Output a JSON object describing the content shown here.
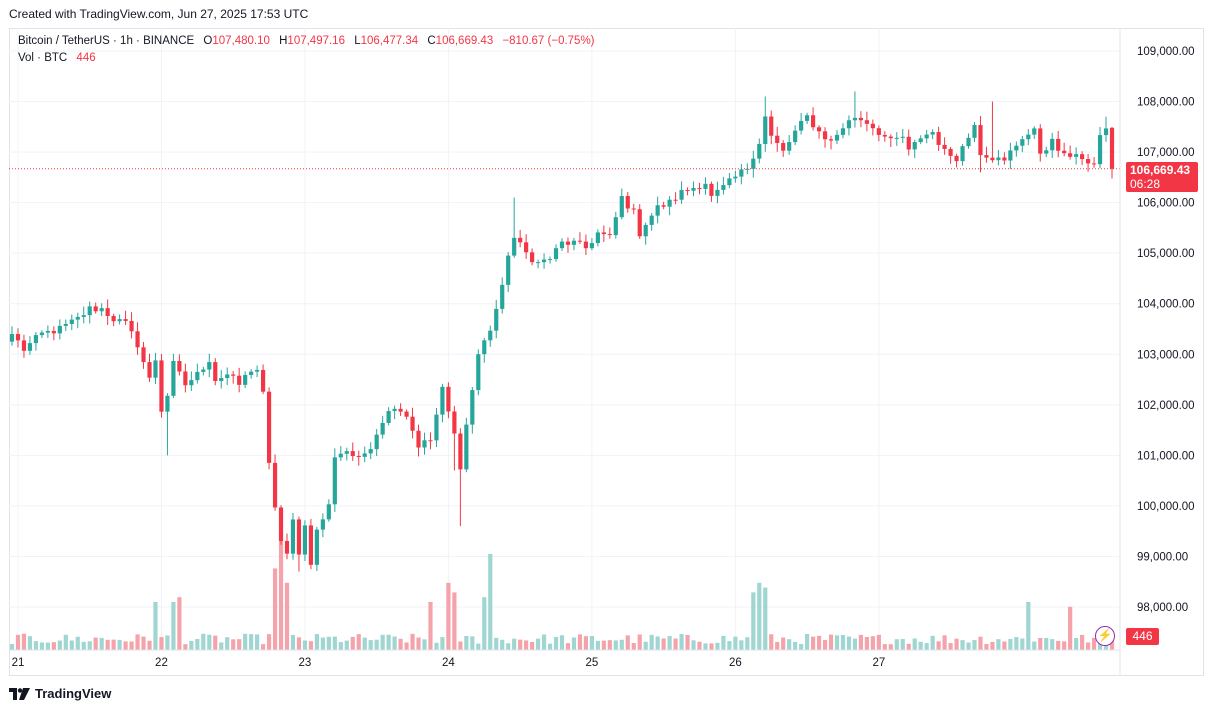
{
  "header": {
    "created": "Created with TradingView.com, Jun 27, 2025 17:53 UTC"
  },
  "legend": {
    "symbol": "Bitcoin / TetherUS · 1h · BINANCE",
    "o_label": "O",
    "open": "107,480.10",
    "h_label": "H",
    "high": "107,497.16",
    "l_label": "L",
    "low": "106,477.34",
    "c_label": "C",
    "close": "106,669.43",
    "change": "−810.67 (−0.75%)",
    "vol_label": "Vol · BTC",
    "vol_value": "446"
  },
  "last_price": {
    "price": "106,669.43",
    "countdown": "06:28",
    "volume": "446"
  },
  "footer": {
    "brand": "TradingView"
  },
  "colors": {
    "up": "#26a69a",
    "down": "#f23645",
    "up_vol": "#9fd6d1",
    "down_vol": "#f5a3aa",
    "grid": "#f0f3fa"
  },
  "chart_data": {
    "type": "candlestick",
    "title": "Bitcoin / TetherUS · 1h · BINANCE",
    "y_axis": {
      "min": 97600,
      "max": 109500,
      "ticks": [
        98000,
        99000,
        100000,
        101000,
        102000,
        103000,
        104000,
        105000,
        106000,
        107000,
        108000,
        109000
      ],
      "tick_labels": [
        "98,000.00",
        "99,000.00",
        "100,000.00",
        "101,000.00",
        "102,000.00",
        "103,000.00",
        "104,000.00",
        "105,000.00",
        "106,000.00",
        "107,000.00",
        "108,000.00",
        "109,000.00"
      ]
    },
    "x_axis": {
      "day_labels": [
        "21",
        "22",
        "23",
        "24",
        "25",
        "26",
        "27"
      ],
      "day_start_index": [
        1,
        25,
        49,
        73,
        97,
        121,
        145
      ]
    },
    "anchors": [
      [
        0,
        103400
      ],
      [
        2,
        103100
      ],
      [
        5,
        103400
      ],
      [
        8,
        103500
      ],
      [
        11,
        103700
      ],
      [
        13,
        103900
      ],
      [
        15,
        103900
      ],
      [
        17,
        103700
      ],
      [
        19,
        103600
      ],
      [
        21,
        103200
      ],
      [
        23,
        102500
      ],
      [
        24,
        102900
      ],
      [
        25,
        101900
      ],
      [
        26,
        102200
      ],
      [
        27,
        102800
      ],
      [
        29,
        102400
      ],
      [
        31,
        102600
      ],
      [
        33,
        102900
      ],
      [
        34,
        102500
      ],
      [
        36,
        102600
      ],
      [
        38,
        102400
      ],
      [
        40,
        102700
      ],
      [
        41,
        102700
      ],
      [
        42,
        102200
      ],
      [
        43,
        100800
      ],
      [
        44,
        100000
      ],
      [
        45,
        99300
      ],
      [
        46,
        99000
      ],
      [
        47,
        99700
      ],
      [
        48,
        99100
      ],
      [
        49,
        99600
      ],
      [
        50,
        98900
      ],
      [
        51,
        99500
      ],
      [
        53,
        100000
      ],
      [
        54,
        101000
      ],
      [
        56,
        101100
      ],
      [
        58,
        100900
      ],
      [
        60,
        101200
      ],
      [
        62,
        101700
      ],
      [
        64,
        102000
      ],
      [
        66,
        101800
      ],
      [
        68,
        101200
      ],
      [
        70,
        101300
      ],
      [
        72,
        102300
      ],
      [
        74,
        101400
      ],
      [
        75,
        100800
      ],
      [
        76,
        101600
      ],
      [
        78,
        103000
      ],
      [
        80,
        103500
      ],
      [
        82,
        104300
      ],
      [
        83,
        105000
      ],
      [
        84,
        105300
      ],
      [
        86,
        105000
      ],
      [
        88,
        104800
      ],
      [
        90,
        104900
      ],
      [
        92,
        105200
      ],
      [
        94,
        105200
      ],
      [
        96,
        105100
      ],
      [
        98,
        105400
      ],
      [
        100,
        105300
      ],
      [
        102,
        106100
      ],
      [
        104,
        105800
      ],
      [
        105,
        105400
      ],
      [
        106,
        105600
      ],
      [
        108,
        105900
      ],
      [
        110,
        106000
      ],
      [
        112,
        106200
      ],
      [
        114,
        106300
      ],
      [
        116,
        106400
      ],
      [
        117,
        106100
      ],
      [
        119,
        106300
      ],
      [
        121,
        106500
      ],
      [
        123,
        106700
      ],
      [
        125,
        107200
      ],
      [
        126,
        107700
      ],
      [
        127,
        107300
      ],
      [
        129,
        107000
      ],
      [
        131,
        107400
      ],
      [
        133,
        107700
      ],
      [
        135,
        107400
      ],
      [
        137,
        107200
      ],
      [
        139,
        107500
      ],
      [
        141,
        107700
      ],
      [
        143,
        107600
      ],
      [
        145,
        107400
      ],
      [
        147,
        107200
      ],
      [
        149,
        107300
      ],
      [
        150,
        107000
      ],
      [
        152,
        107300
      ],
      [
        154,
        107400
      ],
      [
        156,
        107000
      ],
      [
        158,
        106900
      ],
      [
        160,
        107300
      ],
      [
        161,
        107600
      ],
      [
        162,
        107000
      ],
      [
        164,
        106900
      ],
      [
        166,
        106800
      ],
      [
        167,
        107000
      ],
      [
        169,
        107300
      ],
      [
        171,
        107400
      ],
      [
        172,
        107000
      ],
      [
        174,
        107200
      ],
      [
        176,
        106900
      ],
      [
        178,
        107000
      ],
      [
        180,
        106700
      ],
      [
        181,
        106800
      ],
      [
        182,
        107300
      ],
      [
        183,
        107500
      ],
      [
        184,
        106669
      ]
    ],
    "extremes": [
      {
        "index": 26,
        "low": 101000
      },
      {
        "index": 48,
        "low": 98700
      },
      {
        "index": 74,
        "low": 100700
      },
      {
        "index": 75,
        "low": 99600
      },
      {
        "index": 84,
        "high": 106100
      },
      {
        "index": 126,
        "high": 108100
      },
      {
        "index": 141,
        "high": 108200
      },
      {
        "index": 164,
        "high": 108000
      },
      {
        "index": 162,
        "low": 106600
      },
      {
        "index": 183,
        "high": 107700
      }
    ],
    "last_candle": {
      "open": 107480.1,
      "high": 107497.16,
      "low": 106477.34,
      "close": 106669.43,
      "volume": 446,
      "direction": "down"
    },
    "volume_spikes": [
      {
        "index": 24,
        "value": 1.0
      },
      {
        "index": 27,
        "value": 1.0
      },
      {
        "index": 28,
        "value": 1.1
      },
      {
        "index": 44,
        "value": 1.7
      },
      {
        "index": 45,
        "value": 2.3
      },
      {
        "index": 46,
        "value": 1.4
      },
      {
        "index": 70,
        "value": 1.0
      },
      {
        "index": 73,
        "value": 1.4
      },
      {
        "index": 74,
        "value": 1.2
      },
      {
        "index": 79,
        "value": 1.1
      },
      {
        "index": 80,
        "value": 2.0
      },
      {
        "index": 124,
        "value": 1.2
      },
      {
        "index": 125,
        "value": 1.4
      },
      {
        "index": 126,
        "value": 1.3
      },
      {
        "index": 170,
        "value": 1.0
      },
      {
        "index": 177,
        "value": 0.9
      }
    ]
  }
}
